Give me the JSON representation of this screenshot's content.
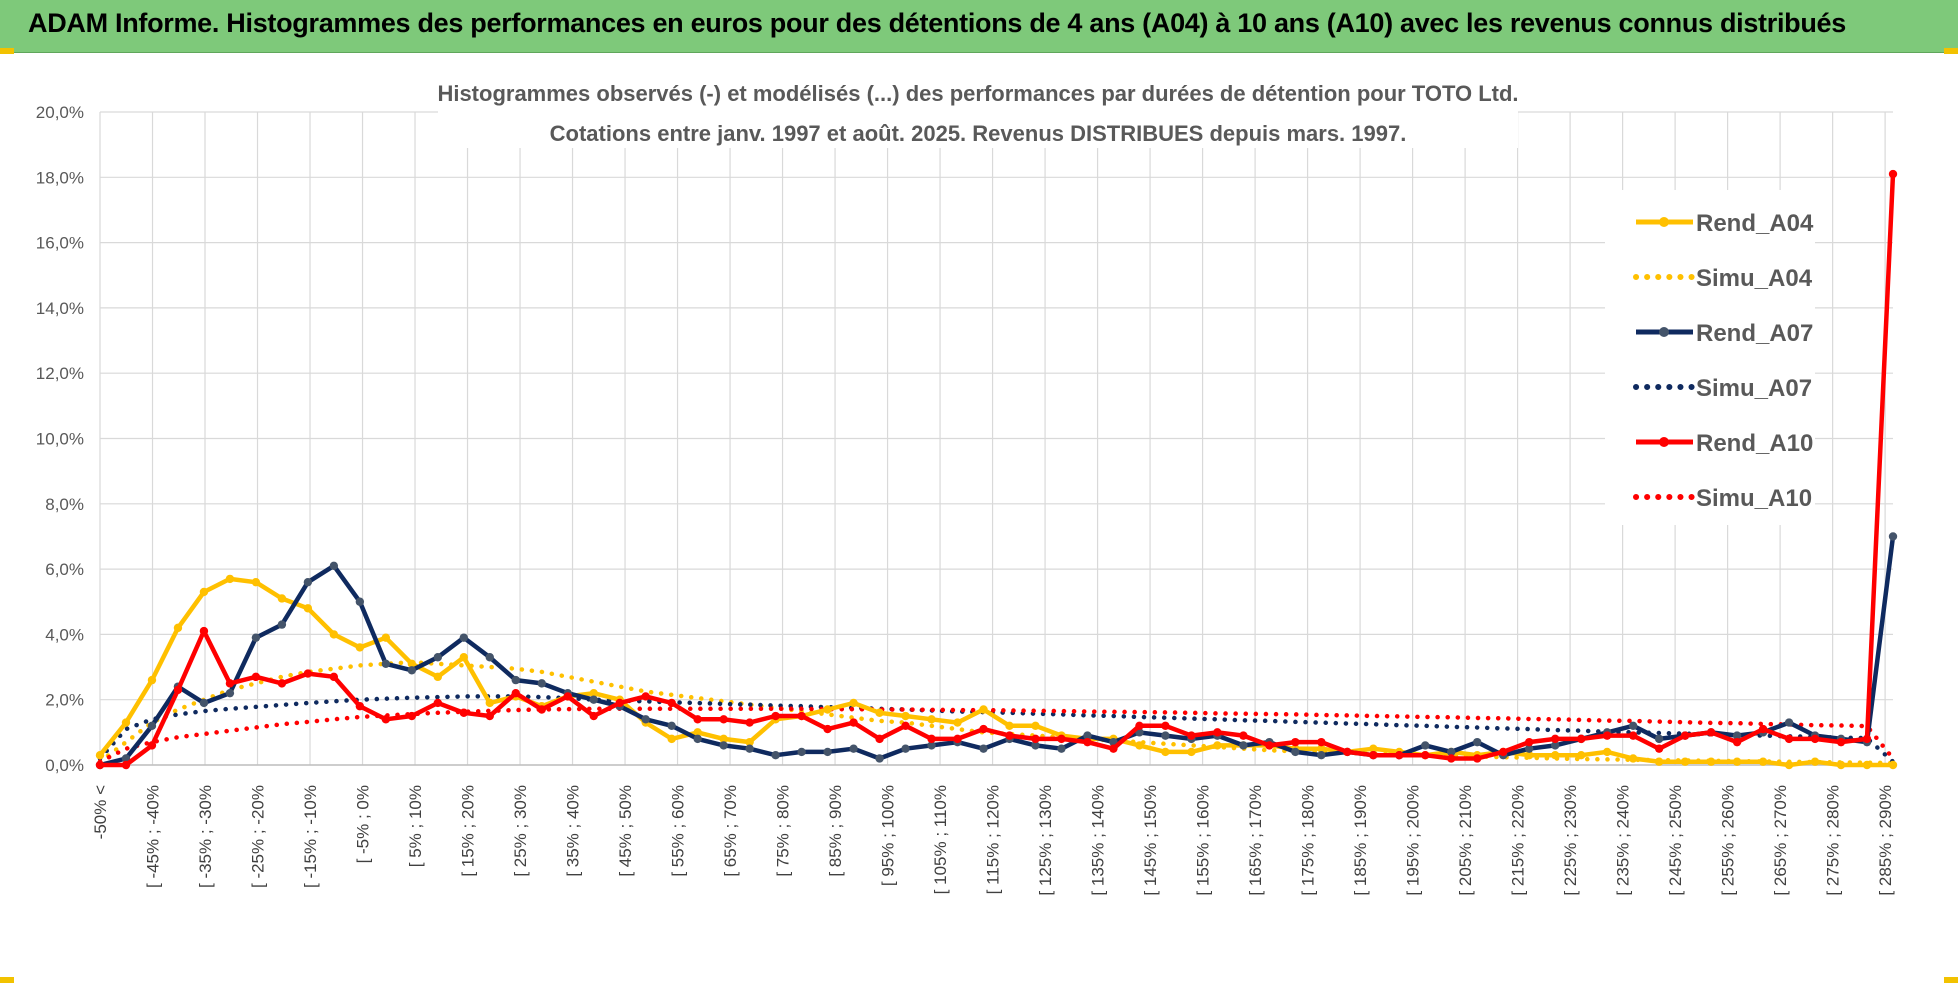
{
  "banner": {
    "title": "ADAM Informe. Histogrammes des performances en euros pour des détentions de 4 ans (A04) à 10 ans (A10) avec les revenus connus distribués"
  },
  "colors": {
    "banner_bg": "#7ec97a",
    "a04": "#ffc000",
    "a07": "#0f2a5f",
    "a10": "#ff0000",
    "gridline": "#d9d9d9"
  },
  "chart_data": {
    "type": "line",
    "title": "Histogrammes observés (-) et modélisés (...) des performances par durées de détention pour TOTO Ltd.",
    "subtitle": "Cotations entre janv. 1997 et août. 2025. Revenus DISTRIBUES depuis mars. 1997.",
    "ylim": [
      0,
      20
    ],
    "y_ticks": [
      "0,0%",
      "2,0%",
      "4,0%",
      "6,0%",
      "8,0%",
      "10,0%",
      "12,0%",
      "14,0%",
      "16,0%",
      "18,0%",
      "20,0%"
    ],
    "x_ticks": [
      "-50% <",
      "[ -45% ; -40%",
      "[ -35% ; -30%",
      "[ -25% ; -20%",
      "[ -15% ; -10%",
      "[ -5% ; 0%",
      "[ 5% ; 10%",
      "[ 15% ; 20%",
      "[ 25% ; 30%",
      "[ 35% ; 40%",
      "[ 45% ; 50%",
      "[ 55% ; 60%",
      "[ 65% ; 70%",
      "[ 75% ; 80%",
      "[ 85% ; 90%",
      "[ 95% ; 100%",
      "[ 105% ; 110%",
      "[ 115% ; 120%",
      "[ 125% ; 130%",
      "[ 135% ; 140%",
      "[ 145% ; 150%",
      "[ 155% ; 160%",
      "[ 165% ; 170%",
      "[ 175% ; 180%",
      "[ 185% ; 190%",
      "[ 195% ; 200%",
      "[ 205% ; 210%",
      "[ 215% ; 220%",
      "[ 225% ; 230%",
      "[ 235% ; 240%",
      "[ 245% ; 250%",
      "[ 255% ; 260%",
      "[ 265% ; 270%",
      "[ 275% ; 280%",
      "[ 285% ; 290%"
    ],
    "legend_position": "right",
    "grid": true,
    "series": [
      {
        "name": "Rend_A04",
        "style": "solid",
        "color": "#ffc000",
        "values": [
          0.3,
          1.3,
          2.6,
          4.2,
          5.3,
          5.7,
          5.6,
          5.1,
          4.8,
          4.0,
          3.6,
          3.9,
          3.1,
          2.7,
          3.3,
          1.9,
          2.1,
          1.8,
          2.1,
          2.2,
          2.0,
          1.3,
          0.8,
          1.0,
          0.8,
          0.7,
          1.4,
          1.5,
          1.7,
          1.9,
          1.6,
          1.5,
          1.4,
          1.3,
          1.7,
          1.2,
          1.2,
          0.9,
          0.8,
          0.8,
          0.6,
          0.4,
          0.4,
          0.6,
          0.6,
          0.6,
          0.5,
          0.5,
          0.4,
          0.5,
          0.4,
          0.3,
          0.4,
          0.3,
          0.4,
          0.3,
          0.3,
          0.3,
          0.4,
          0.2,
          0.1,
          0.1,
          0.1,
          0.1,
          0.1,
          0.0,
          0.1,
          0.0,
          0.0,
          0.0
        ]
      },
      {
        "name": "Simu_A04",
        "style": "dotted",
        "color": "#ffc000",
        "values": [
          0.1,
          0.7,
          1.3,
          1.7,
          2.0,
          2.3,
          2.5,
          2.7,
          2.85,
          2.95,
          3.05,
          3.1,
          3.15,
          3.1,
          3.05,
          3.0,
          2.95,
          2.85,
          2.7,
          2.55,
          2.4,
          2.25,
          2.15,
          2.05,
          1.95,
          1.85,
          1.75,
          1.65,
          1.55,
          1.45,
          1.35,
          1.3,
          1.2,
          1.1,
          1.0,
          0.95,
          0.9,
          0.85,
          0.8,
          0.75,
          0.7,
          0.65,
          0.6,
          0.55,
          0.5,
          0.45,
          0.42,
          0.4,
          0.37,
          0.35,
          0.32,
          0.3,
          0.28,
          0.26,
          0.24,
          0.22,
          0.2,
          0.18,
          0.17,
          0.16,
          0.15,
          0.14,
          0.13,
          0.12,
          0.11,
          0.1,
          0.09,
          0.08,
          0.07,
          0.06
        ]
      },
      {
        "name": "Rend_A07",
        "style": "solid",
        "color": "#0f2a5f",
        "values": [
          0.0,
          0.2,
          1.2,
          2.4,
          1.9,
          2.2,
          3.9,
          4.3,
          5.6,
          6.1,
          5.0,
          3.1,
          2.9,
          3.3,
          3.9,
          3.3,
          2.6,
          2.5,
          2.2,
          2.0,
          1.8,
          1.4,
          1.2,
          0.8,
          0.6,
          0.5,
          0.3,
          0.4,
          0.4,
          0.5,
          0.2,
          0.5,
          0.6,
          0.7,
          0.5,
          0.8,
          0.6,
          0.5,
          0.9,
          0.7,
          1.0,
          0.9,
          0.8,
          0.9,
          0.6,
          0.7,
          0.4,
          0.3,
          0.4,
          0.3,
          0.3,
          0.6,
          0.4,
          0.7,
          0.3,
          0.5,
          0.6,
          0.8,
          1.0,
          1.2,
          0.8,
          0.9,
          1.0,
          0.9,
          1.0,
          1.3,
          0.9,
          0.8,
          0.7,
          7.0
        ]
      },
      {
        "name": "Simu_A07",
        "style": "dotted",
        "color": "#0f2a5f",
        "values": [
          0.2,
          1.1,
          1.4,
          1.55,
          1.65,
          1.72,
          1.78,
          1.84,
          1.9,
          1.95,
          2.0,
          2.03,
          2.06,
          2.08,
          2.1,
          2.1,
          2.1,
          2.08,
          2.05,
          2.0,
          1.97,
          1.95,
          1.92,
          1.9,
          1.87,
          1.85,
          1.82,
          1.8,
          1.77,
          1.75,
          1.72,
          1.7,
          1.67,
          1.64,
          1.62,
          1.6,
          1.57,
          1.55,
          1.52,
          1.5,
          1.47,
          1.45,
          1.42,
          1.4,
          1.37,
          1.35,
          1.32,
          1.3,
          1.27,
          1.25,
          1.22,
          1.2,
          1.17,
          1.15,
          1.12,
          1.1,
          1.07,
          1.05,
          1.02,
          1.0,
          0.98,
          0.96,
          0.94,
          0.92,
          0.9,
          0.88,
          0.86,
          0.84,
          0.82,
          0.1
        ]
      },
      {
        "name": "Rend_A10",
        "style": "solid",
        "color": "#ff0000",
        "values": [
          0.0,
          0.0,
          0.6,
          2.3,
          4.1,
          2.5,
          2.7,
          2.5,
          2.8,
          2.7,
          1.8,
          1.4,
          1.5,
          1.9,
          1.6,
          1.5,
          2.2,
          1.7,
          2.1,
          1.5,
          1.9,
          2.1,
          1.9,
          1.4,
          1.4,
          1.3,
          1.5,
          1.5,
          1.1,
          1.3,
          0.8,
          1.2,
          0.8,
          0.8,
          1.1,
          0.9,
          0.8,
          0.8,
          0.7,
          0.5,
          1.2,
          1.2,
          0.9,
          1.0,
          0.9,
          0.6,
          0.7,
          0.7,
          0.4,
          0.3,
          0.3,
          0.3,
          0.2,
          0.2,
          0.4,
          0.7,
          0.8,
          0.8,
          0.9,
          0.9,
          0.5,
          0.9,
          1.0,
          0.7,
          1.1,
          0.8,
          0.8,
          0.7,
          0.8,
          18.1
        ]
      },
      {
        "name": "Simu_A10",
        "style": "dotted",
        "color": "#ff0000",
        "values": [
          0.1,
          0.5,
          0.7,
          0.85,
          0.95,
          1.05,
          1.15,
          1.25,
          1.32,
          1.4,
          1.47,
          1.52,
          1.56,
          1.6,
          1.63,
          1.66,
          1.68,
          1.7,
          1.71,
          1.72,
          1.72,
          1.72,
          1.72,
          1.72,
          1.72,
          1.72,
          1.72,
          1.72,
          1.71,
          1.71,
          1.7,
          1.7,
          1.69,
          1.68,
          1.68,
          1.67,
          1.66,
          1.65,
          1.64,
          1.63,
          1.62,
          1.61,
          1.6,
          1.58,
          1.57,
          1.56,
          1.55,
          1.53,
          1.52,
          1.5,
          1.49,
          1.47,
          1.46,
          1.44,
          1.43,
          1.41,
          1.4,
          1.38,
          1.36,
          1.35,
          1.33,
          1.31,
          1.29,
          1.28,
          1.26,
          1.24,
          1.22,
          1.21,
          1.19,
          0.2
        ]
      }
    ]
  }
}
